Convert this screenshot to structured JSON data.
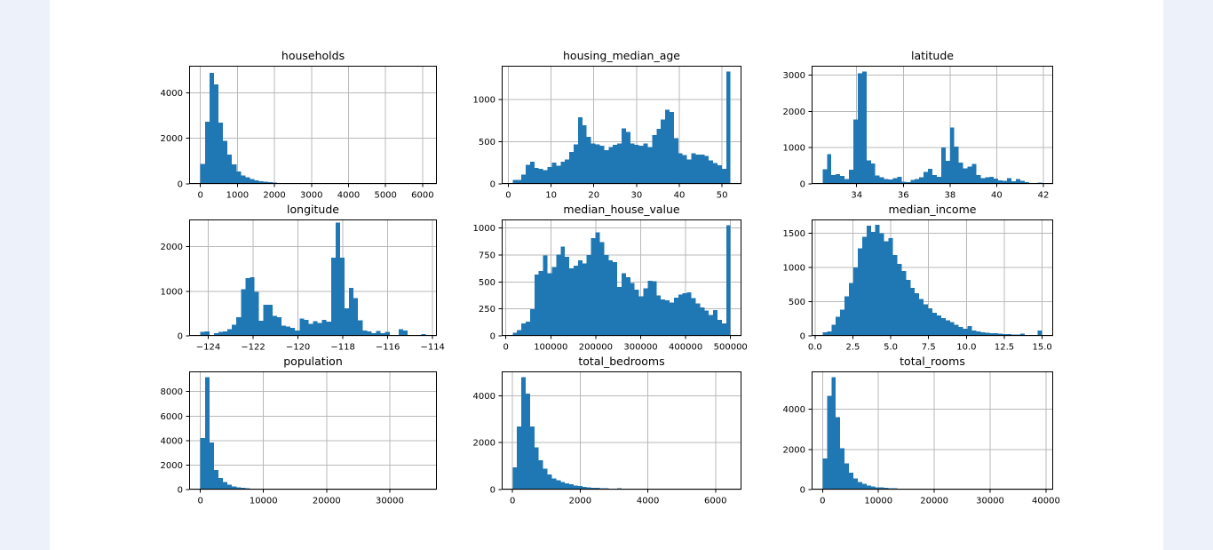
{
  "page": {
    "background": "#edf1fa"
  },
  "figure": {
    "background": "#ffffff",
    "bar_color": "#1f77b4",
    "grid_color": "#b9b9b9",
    "axis_color": "#000000",
    "text_color": "#000000"
  },
  "chart_data": [
    {
      "type": "bar",
      "title": "households",
      "xlabel": "",
      "ylabel": "",
      "bins": {
        "start": 1,
        "end": 6082
      },
      "counts": [
        870,
        2740,
        4870,
        4370,
        2700,
        1900,
        1290,
        865,
        540,
        375,
        285,
        220,
        155,
        115,
        90,
        70,
        55,
        45,
        38,
        30,
        25,
        20,
        18,
        15,
        12,
        10,
        9,
        8,
        7,
        6,
        5,
        5,
        4,
        4,
        3,
        3,
        2,
        2,
        2,
        2,
        1,
        1,
        1,
        1,
        1,
        0,
        0,
        0,
        0,
        1
      ],
      "xlim": [
        -303,
        6386
      ],
      "ylim": [
        0,
        5190
      ],
      "xticks": [
        {
          "v": 0,
          "label": "0"
        },
        {
          "v": 1000,
          "label": "1000"
        },
        {
          "v": 2000,
          "label": "2000"
        },
        {
          "v": 3000,
          "label": "3000"
        },
        {
          "v": 4000,
          "label": "4000"
        },
        {
          "v": 5000,
          "label": "5000"
        },
        {
          "v": 6000,
          "label": "6000"
        }
      ],
      "yticks": [
        {
          "v": 0,
          "label": "0"
        },
        {
          "v": 2000,
          "label": "2000"
        },
        {
          "v": 4000,
          "label": "4000"
        }
      ]
    },
    {
      "type": "bar",
      "title": "housing_median_age",
      "xlabel": "",
      "ylabel": "",
      "bins": {
        "start": 1,
        "end": 52
      },
      "counts": [
        47,
        47,
        110,
        225,
        264,
        190,
        181,
        163,
        199,
        254,
        217,
        261,
        290,
        380,
        471,
        790,
        696,
        558,
        478,
        471,
        453,
        399,
        435,
        464,
        478,
        660,
        616,
        478,
        464,
        453,
        478,
        435,
        580,
        652,
        761,
        877,
        851,
        543,
        362,
        344,
        290,
        362,
        350,
        345,
        330,
        280,
        250,
        220,
        180,
        1330
      ],
      "xlim": [
        -1.55,
        54.55
      ],
      "ylim": [
        0,
        1400
      ],
      "xticks": [
        {
          "v": 0,
          "label": "0"
        },
        {
          "v": 10,
          "label": "10"
        },
        {
          "v": 20,
          "label": "20"
        },
        {
          "v": 30,
          "label": "30"
        },
        {
          "v": 40,
          "label": "40"
        },
        {
          "v": 50,
          "label": "50"
        }
      ],
      "yticks": [
        {
          "v": 0,
          "label": "0"
        },
        {
          "v": 500,
          "label": "500"
        },
        {
          "v": 1000,
          "label": "1000"
        }
      ]
    },
    {
      "type": "bar",
      "title": "latitude",
      "xlabel": "",
      "ylabel": "",
      "bins": {
        "start": 32.54,
        "end": 41.95
      },
      "counts": [
        410,
        820,
        240,
        275,
        225,
        130,
        390,
        1780,
        3050,
        3100,
        650,
        560,
        230,
        180,
        130,
        120,
        160,
        200,
        60,
        50,
        110,
        140,
        180,
        330,
        420,
        250,
        190,
        1010,
        640,
        1560,
        1030,
        590,
        430,
        480,
        550,
        250,
        160,
        180,
        200,
        150,
        100,
        80,
        160,
        70,
        130,
        90,
        50,
        30,
        20,
        40
      ],
      "xlim": [
        32.07,
        42.42
      ],
      "ylim": [
        0,
        3260
      ],
      "xticks": [
        {
          "v": 34,
          "label": "34"
        },
        {
          "v": 36,
          "label": "36"
        },
        {
          "v": 38,
          "label": "38"
        },
        {
          "v": 40,
          "label": "40"
        },
        {
          "v": 42,
          "label": "42"
        }
      ],
      "yticks": [
        {
          "v": 0,
          "label": "0"
        },
        {
          "v": 1000,
          "label": "1000"
        },
        {
          "v": 2000,
          "label": "2000"
        },
        {
          "v": 3000,
          "label": "3000"
        }
      ]
    },
    {
      "type": "bar",
      "title": "longitude",
      "xlabel": "",
      "ylabel": "",
      "bins": {
        "start": -124.35,
        "end": -114.31
      },
      "counts": [
        90,
        100,
        0,
        60,
        90,
        100,
        150,
        250,
        420,
        1050,
        1300,
        1310,
        990,
        340,
        700,
        700,
        450,
        420,
        230,
        210,
        180,
        120,
        390,
        360,
        270,
        330,
        290,
        360,
        320,
        1750,
        2540,
        1750,
        620,
        1080,
        850,
        350,
        120,
        100,
        60,
        110,
        60,
        90,
        20,
        15,
        150,
        120,
        10,
        5,
        20,
        40
      ],
      "xlim": [
        -124.85,
        -113.81
      ],
      "ylim": [
        0,
        2610
      ],
      "xticks": [
        {
          "v": -124,
          "label": "−124"
        },
        {
          "v": -122,
          "label": "−122"
        },
        {
          "v": -120,
          "label": "−120"
        },
        {
          "v": -118,
          "label": "−118"
        },
        {
          "v": -116,
          "label": "−116"
        },
        {
          "v": -114,
          "label": "−114"
        }
      ],
      "yticks": [
        {
          "v": 0,
          "label": "0"
        },
        {
          "v": 1000,
          "label": "1000"
        },
        {
          "v": 2000,
          "label": "2000"
        }
      ]
    },
    {
      "type": "bar",
      "title": "median_house_value",
      "xlabel": "",
      "ylabel": "",
      "bins": {
        "start": 14999,
        "end": 500001
      },
      "counts": [
        30,
        55,
        115,
        130,
        247,
        570,
        600,
        745,
        580,
        640,
        755,
        830,
        735,
        625,
        650,
        700,
        670,
        750,
        905,
        960,
        870,
        750,
        700,
        685,
        455,
        580,
        545,
        490,
        430,
        365,
        440,
        510,
        505,
        375,
        340,
        330,
        310,
        355,
        385,
        395,
        405,
        350,
        300,
        265,
        235,
        195,
        240,
        150,
        115,
        1025
      ],
      "xlim": [
        -9250,
        524250
      ],
      "ylim": [
        0,
        1080
      ],
      "xticks": [
        {
          "v": 0,
          "label": "0"
        },
        {
          "v": 100000,
          "label": "100000"
        },
        {
          "v": 200000,
          "label": "200000"
        },
        {
          "v": 300000,
          "label": "300000"
        },
        {
          "v": 400000,
          "label": "400000"
        },
        {
          "v": 500000,
          "label": "500000"
        }
      ],
      "yticks": [
        {
          "v": 0,
          "label": "0"
        },
        {
          "v": 250,
          "label": "250"
        },
        {
          "v": 500,
          "label": "500"
        },
        {
          "v": 750,
          "label": "750"
        },
        {
          "v": 1000,
          "label": "1000"
        }
      ]
    },
    {
      "type": "bar",
      "title": "median_income",
      "xlabel": "",
      "ylabel": "",
      "bins": {
        "start": 0.4999,
        "end": 15.0001
      },
      "counts": [
        55,
        65,
        165,
        280,
        380,
        580,
        770,
        1000,
        1280,
        1450,
        1610,
        1520,
        1620,
        1500,
        1380,
        1430,
        1180,
        1050,
        950,
        820,
        700,
        620,
        540,
        460,
        400,
        340,
        300,
        260,
        230,
        200,
        160,
        130,
        105,
        140,
        80,
        65,
        55,
        48,
        42,
        38,
        33,
        28,
        25,
        20,
        18,
        30,
        12,
        10,
        8,
        80
      ],
      "xlim": [
        -0.225,
        15.725
      ],
      "ylim": [
        0,
        1700
      ],
      "xticks": [
        {
          "v": 0,
          "label": "0.0"
        },
        {
          "v": 2.5,
          "label": "2.5"
        },
        {
          "v": 5,
          "label": "5.0"
        },
        {
          "v": 7.5,
          "label": "7.5"
        },
        {
          "v": 10,
          "label": "10.0"
        },
        {
          "v": 12.5,
          "label": "12.5"
        },
        {
          "v": 15,
          "label": "15.0"
        }
      ],
      "yticks": [
        {
          "v": 0,
          "label": "0"
        },
        {
          "v": 500,
          "label": "500"
        },
        {
          "v": 1000,
          "label": "1000"
        },
        {
          "v": 1500,
          "label": "1500"
        }
      ]
    },
    {
      "type": "bar",
      "title": "population",
      "xlabel": "",
      "ylabel": "",
      "bins": {
        "start": 3,
        "end": 35682
      },
      "counts": [
        4200,
        9170,
        3850,
        1600,
        950,
        600,
        400,
        250,
        180,
        130,
        100,
        80,
        65,
        55,
        45,
        40,
        35,
        30,
        25,
        22,
        60,
        18,
        15,
        45,
        12,
        10,
        8,
        7,
        6,
        5,
        5,
        4,
        4,
        3,
        3,
        2,
        2,
        2,
        1,
        1,
        1,
        1,
        0,
        0,
        1,
        0,
        0,
        0,
        0,
        1
      ],
      "xlim": [
        -1781,
        37466
      ],
      "ylim": [
        0,
        9650
      ],
      "xticks": [
        {
          "v": 0,
          "label": "0"
        },
        {
          "v": 10000,
          "label": "10000"
        },
        {
          "v": 20000,
          "label": "20000"
        },
        {
          "v": 30000,
          "label": "30000"
        }
      ],
      "yticks": [
        {
          "v": 0,
          "label": "0"
        },
        {
          "v": 2000,
          "label": "2000"
        },
        {
          "v": 4000,
          "label": "4000"
        },
        {
          "v": 6000,
          "label": "6000"
        },
        {
          "v": 8000,
          "label": "8000"
        }
      ]
    },
    {
      "type": "bar",
      "title": "total_bedrooms",
      "xlabel": "",
      "ylabel": "",
      "bins": {
        "start": 1,
        "end": 6445
      },
      "counts": [
        950,
        2700,
        4800,
        4100,
        2700,
        1800,
        1250,
        900,
        650,
        480,
        400,
        330,
        270,
        220,
        180,
        150,
        120,
        100,
        85,
        70,
        60,
        50,
        45,
        40,
        60,
        30,
        25,
        22,
        20,
        18,
        16,
        15,
        14,
        30,
        11,
        10,
        25,
        8,
        8,
        7,
        20,
        6,
        5,
        15,
        4,
        25,
        2,
        2,
        1,
        1
      ],
      "xlim": [
        -321,
        6767
      ],
      "ylim": [
        0,
        5040
      ],
      "xticks": [
        {
          "v": 0,
          "label": "0"
        },
        {
          "v": 2000,
          "label": "2000"
        },
        {
          "v": 4000,
          "label": "4000"
        },
        {
          "v": 6000,
          "label": "6000"
        }
      ],
      "yticks": [
        {
          "v": 0,
          "label": "0"
        },
        {
          "v": 2000,
          "label": "2000"
        },
        {
          "v": 4000,
          "label": "4000"
        }
      ]
    },
    {
      "type": "bar",
      "title": "total_rooms",
      "xlabel": "",
      "ylabel": "",
      "bins": {
        "start": 2,
        "end": 39320
      },
      "counts": [
        1550,
        4670,
        5610,
        3600,
        2050,
        1300,
        850,
        550,
        380,
        280,
        210,
        160,
        120,
        100,
        85,
        70,
        60,
        50,
        45,
        40,
        35,
        30,
        28,
        25,
        22,
        20,
        18,
        16,
        15,
        14,
        30,
        12,
        10,
        25,
        8,
        20,
        6,
        5,
        40,
        4,
        3,
        2,
        2,
        1,
        1,
        1,
        0,
        0,
        0,
        1
      ],
      "xlim": [
        -1964,
        41286
      ],
      "ylim": [
        0,
        5890
      ],
      "xticks": [
        {
          "v": 0,
          "label": "0"
        },
        {
          "v": 10000,
          "label": "10000"
        },
        {
          "v": 20000,
          "label": "20000"
        },
        {
          "v": 30000,
          "label": "30000"
        },
        {
          "v": 40000,
          "label": "40000"
        }
      ],
      "yticks": [
        {
          "v": 0,
          "label": "0"
        },
        {
          "v": 2000,
          "label": "2000"
        },
        {
          "v": 4000,
          "label": "4000"
        }
      ]
    }
  ]
}
